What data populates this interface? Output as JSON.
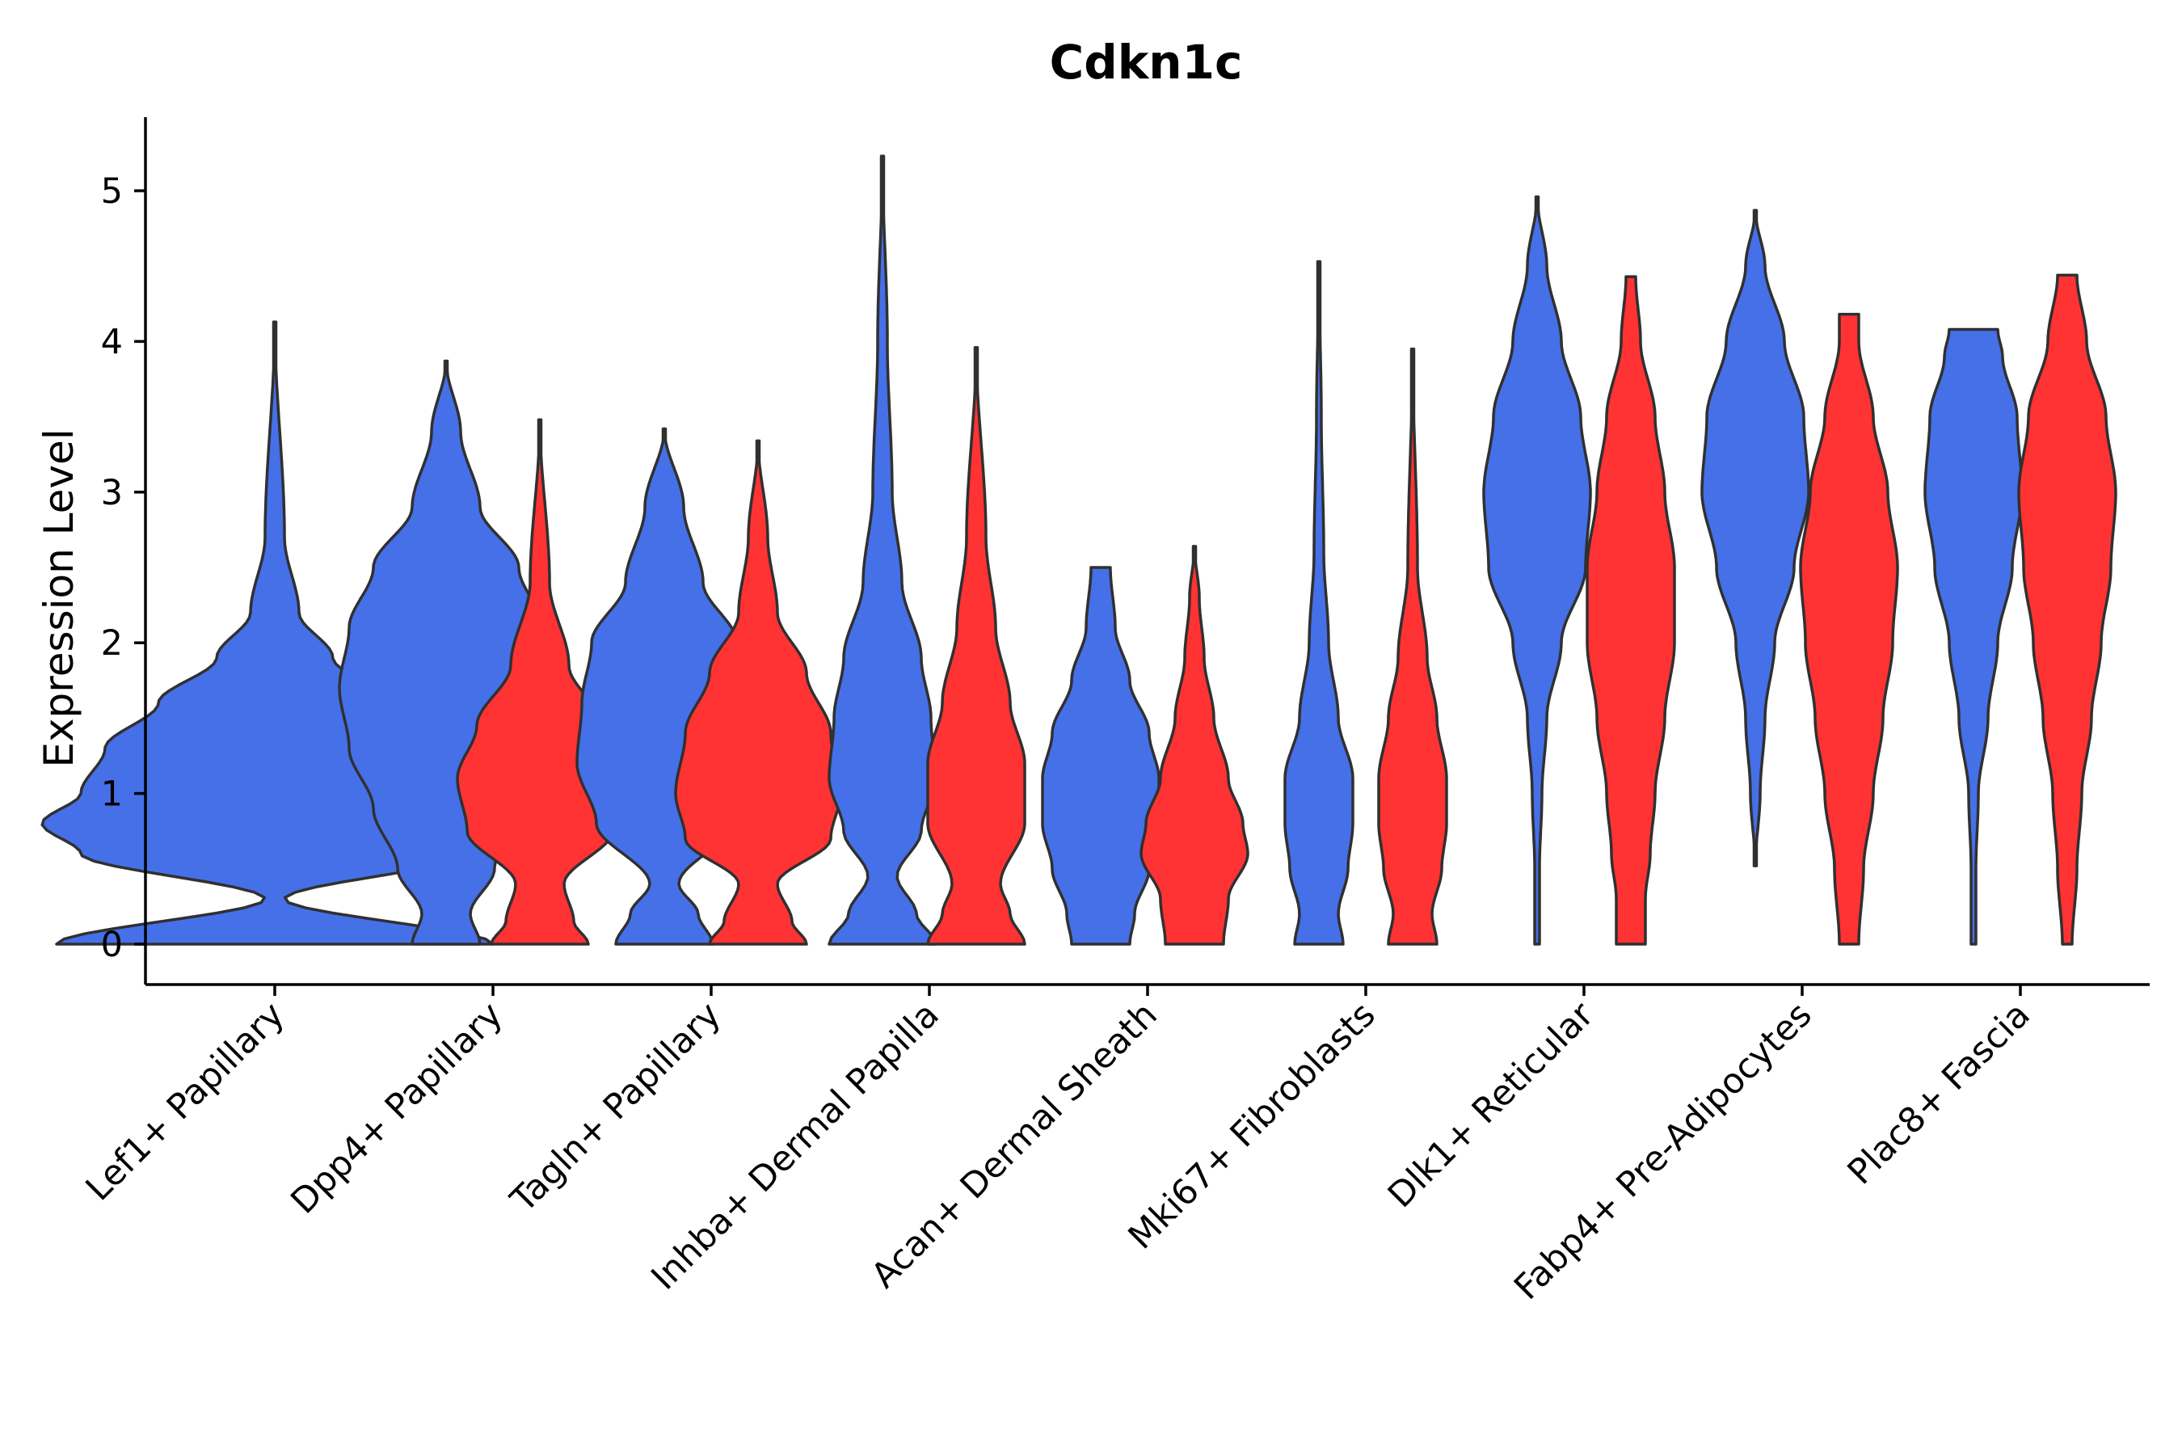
{
  "chart_data": {
    "type": "violin",
    "title": "Cdkn1c",
    "xlabel": "",
    "ylabel": "Expression Level",
    "ylim": [
      -0.26,
      5.5
    ],
    "yticks": [
      0,
      1,
      2,
      3,
      4,
      5
    ],
    "grid": false,
    "legend": "none",
    "colors": {
      "blue": "#4570E8",
      "red": "#FF3333"
    },
    "categories": [
      "Lef1+ Papillary",
      "Dpp4+ Papillary",
      "Tagln+ Papillary",
      "Inhba+ Dermal Papilla",
      "Acan+ Dermal Sheath",
      "Mki67+ Fibroblasts",
      "Dlk1+ Reticular",
      "Fabp4+ Pre-Adipocytes",
      "Plac8+ Fascia"
    ],
    "violins": [
      {
        "category": 0,
        "slot": 0,
        "color": "blue",
        "ymin": 0,
        "ymax": 4.13,
        "profile": [
          [
            0,
            0.45
          ],
          [
            0.3,
            0.02
          ],
          [
            0.6,
            0.4
          ],
          [
            0.8,
            0.48
          ],
          [
            1.0,
            0.4
          ],
          [
            1.3,
            0.35
          ],
          [
            1.6,
            0.24
          ],
          [
            1.9,
            0.12
          ],
          [
            2.2,
            0.05
          ],
          [
            2.7,
            0.02
          ],
          [
            4.13,
            0.0
          ]
        ]
      },
      {
        "category": 1,
        "slot": -1,
        "color": "blue",
        "ymin": 0,
        "ymax": 3.87,
        "profile": [
          [
            0,
            0.07
          ],
          [
            0.2,
            0.05
          ],
          [
            0.5,
            0.1
          ],
          [
            0.9,
            0.15
          ],
          [
            1.3,
            0.2
          ],
          [
            1.7,
            0.22
          ],
          [
            2.1,
            0.2
          ],
          [
            2.5,
            0.15
          ],
          [
            2.9,
            0.07
          ],
          [
            3.4,
            0.03
          ],
          [
            3.87,
            0.0
          ]
        ]
      },
      {
        "category": 1,
        "slot": 1,
        "color": "red",
        "ymin": 0,
        "ymax": 3.48,
        "profile": [
          [
            0,
            0.1
          ],
          [
            0.15,
            0.07
          ],
          [
            0.4,
            0.05
          ],
          [
            0.75,
            0.15
          ],
          [
            1.1,
            0.17
          ],
          [
            1.45,
            0.13
          ],
          [
            1.85,
            0.06
          ],
          [
            2.4,
            0.02
          ],
          [
            3.48,
            0.0
          ]
        ]
      },
      {
        "category": 2,
        "slot": -1,
        "color": "blue",
        "ymin": 0,
        "ymax": 3.42,
        "profile": [
          [
            0,
            0.1
          ],
          [
            0.2,
            0.07
          ],
          [
            0.4,
            0.03
          ],
          [
            0.8,
            0.14
          ],
          [
            1.2,
            0.18
          ],
          [
            1.6,
            0.17
          ],
          [
            2.0,
            0.15
          ],
          [
            2.4,
            0.08
          ],
          [
            2.9,
            0.04
          ],
          [
            3.42,
            0.0
          ]
        ]
      },
      {
        "category": 2,
        "slot": 1,
        "color": "red",
        "ymin": 0,
        "ymax": 3.34,
        "profile": [
          [
            0,
            0.1
          ],
          [
            0.15,
            0.07
          ],
          [
            0.4,
            0.04
          ],
          [
            0.7,
            0.15
          ],
          [
            1.0,
            0.17
          ],
          [
            1.4,
            0.15
          ],
          [
            1.8,
            0.1
          ],
          [
            2.2,
            0.04
          ],
          [
            2.7,
            0.02
          ],
          [
            3.34,
            0.0
          ]
        ]
      },
      {
        "category": 3,
        "slot": -1,
        "color": "blue",
        "ymin": 0,
        "ymax": 5.23,
        "profile": [
          [
            0,
            0.11
          ],
          [
            0.2,
            0.07
          ],
          [
            0.45,
            0.03
          ],
          [
            0.75,
            0.08
          ],
          [
            1.1,
            0.11
          ],
          [
            1.5,
            0.1
          ],
          [
            1.9,
            0.08
          ],
          [
            2.4,
            0.04
          ],
          [
            3.0,
            0.02
          ],
          [
            4.0,
            0.01
          ],
          [
            5.23,
            0.0
          ]
        ]
      },
      {
        "category": 3,
        "slot": 1,
        "color": "red",
        "ymin": 0,
        "ymax": 3.96,
        "profile": [
          [
            0,
            0.1
          ],
          [
            0.2,
            0.07
          ],
          [
            0.4,
            0.05
          ],
          [
            0.8,
            0.1
          ],
          [
            1.2,
            0.1
          ],
          [
            1.6,
            0.07
          ],
          [
            2.1,
            0.04
          ],
          [
            2.7,
            0.02
          ],
          [
            3.96,
            0.0
          ]
        ]
      },
      {
        "category": 4,
        "slot": -1,
        "color": "blue",
        "ymin": 0,
        "ymax": 2.5,
        "profile": [
          [
            0,
            0.06
          ],
          [
            0.2,
            0.07
          ],
          [
            0.5,
            0.1
          ],
          [
            0.8,
            0.12
          ],
          [
            1.1,
            0.12
          ],
          [
            1.4,
            0.1
          ],
          [
            1.75,
            0.06
          ],
          [
            2.1,
            0.03
          ],
          [
            2.5,
            0.02
          ]
        ]
      },
      {
        "category": 4,
        "slot": 1,
        "color": "red",
        "ymin": 0,
        "ymax": 2.64,
        "profile": [
          [
            0,
            0.06
          ],
          [
            0.3,
            0.07
          ],
          [
            0.6,
            0.11
          ],
          [
            0.8,
            0.1
          ],
          [
            1.1,
            0.07
          ],
          [
            1.5,
            0.04
          ],
          [
            1.9,
            0.02
          ],
          [
            2.3,
            0.01
          ],
          [
            2.64,
            0.0
          ]
        ]
      },
      {
        "category": 5,
        "slot": -1,
        "color": "blue",
        "ymin": 0,
        "ymax": 4.53,
        "profile": [
          [
            0,
            0.05
          ],
          [
            0.2,
            0.04
          ],
          [
            0.5,
            0.06
          ],
          [
            0.8,
            0.07
          ],
          [
            1.1,
            0.07
          ],
          [
            1.5,
            0.04
          ],
          [
            2.0,
            0.02
          ],
          [
            2.6,
            0.01
          ],
          [
            3.5,
            0.005
          ],
          [
            4.53,
            0.0
          ]
        ]
      },
      {
        "category": 5,
        "slot": 1,
        "color": "red",
        "ymin": 0,
        "ymax": 3.95,
        "profile": [
          [
            0,
            0.05
          ],
          [
            0.2,
            0.04
          ],
          [
            0.5,
            0.06
          ],
          [
            0.8,
            0.07
          ],
          [
            1.1,
            0.07
          ],
          [
            1.5,
            0.05
          ],
          [
            1.9,
            0.03
          ],
          [
            2.5,
            0.01
          ],
          [
            3.95,
            0.0
          ]
        ]
      },
      {
        "category": 6,
        "slot": -1,
        "color": "blue",
        "ymin": 0,
        "ymax": 4.96,
        "profile": [
          [
            0,
            0.005
          ],
          [
            0.5,
            0.005
          ],
          [
            1.0,
            0.01
          ],
          [
            1.5,
            0.02
          ],
          [
            2.0,
            0.05
          ],
          [
            2.5,
            0.1
          ],
          [
            3.0,
            0.11
          ],
          [
            3.5,
            0.09
          ],
          [
            4.0,
            0.05
          ],
          [
            4.5,
            0.02
          ],
          [
            4.96,
            0.0
          ]
        ]
      },
      {
        "category": 6,
        "slot": 1,
        "color": "red",
        "ymin": 0,
        "ymax": 4.43,
        "profile": [
          [
            0,
            0.03
          ],
          [
            0.3,
            0.03
          ],
          [
            0.6,
            0.04
          ],
          [
            1.0,
            0.05
          ],
          [
            1.5,
            0.07
          ],
          [
            2.0,
            0.09
          ],
          [
            2.5,
            0.09
          ],
          [
            3.0,
            0.07
          ],
          [
            3.5,
            0.05
          ],
          [
            4.0,
            0.02
          ],
          [
            4.43,
            0.01
          ]
        ]
      },
      {
        "category": 7,
        "slot": -1,
        "color": "blue",
        "ymin": 0.52,
        "ymax": 4.87,
        "profile": [
          [
            0.52,
            0.0
          ],
          [
            1.0,
            0.01
          ],
          [
            1.5,
            0.02
          ],
          [
            2.0,
            0.04
          ],
          [
            2.5,
            0.08
          ],
          [
            3.0,
            0.11
          ],
          [
            3.5,
            0.1
          ],
          [
            4.0,
            0.06
          ],
          [
            4.5,
            0.02
          ],
          [
            4.87,
            0.0
          ]
        ]
      },
      {
        "category": 7,
        "slot": 1,
        "color": "red",
        "ymin": 0,
        "ymax": 4.18,
        "profile": [
          [
            0,
            0.02
          ],
          [
            0.5,
            0.03
          ],
          [
            1.0,
            0.05
          ],
          [
            1.5,
            0.07
          ],
          [
            2.0,
            0.09
          ],
          [
            2.5,
            0.1
          ],
          [
            3.0,
            0.08
          ],
          [
            3.5,
            0.05
          ],
          [
            4.0,
            0.02
          ],
          [
            4.18,
            0.02
          ]
        ]
      },
      {
        "category": 8,
        "slot": -1,
        "color": "blue",
        "ymin": 0,
        "ymax": 4.08,
        "profile": [
          [
            0,
            0.005
          ],
          [
            0.5,
            0.005
          ],
          [
            1.0,
            0.01
          ],
          [
            1.5,
            0.03
          ],
          [
            2.0,
            0.05
          ],
          [
            2.5,
            0.08
          ],
          [
            3.0,
            0.1
          ],
          [
            3.5,
            0.09
          ],
          [
            3.9,
            0.06
          ],
          [
            4.08,
            0.05
          ]
        ]
      },
      {
        "category": 8,
        "slot": 1,
        "color": "red",
        "ymin": 0,
        "ymax": 4.44,
        "profile": [
          [
            0,
            0.01
          ],
          [
            0.5,
            0.02
          ],
          [
            1.0,
            0.03
          ],
          [
            1.5,
            0.05
          ],
          [
            2.0,
            0.07
          ],
          [
            2.5,
            0.09
          ],
          [
            3.0,
            0.1
          ],
          [
            3.5,
            0.08
          ],
          [
            4.0,
            0.04
          ],
          [
            4.44,
            0.02
          ]
        ]
      }
    ]
  }
}
